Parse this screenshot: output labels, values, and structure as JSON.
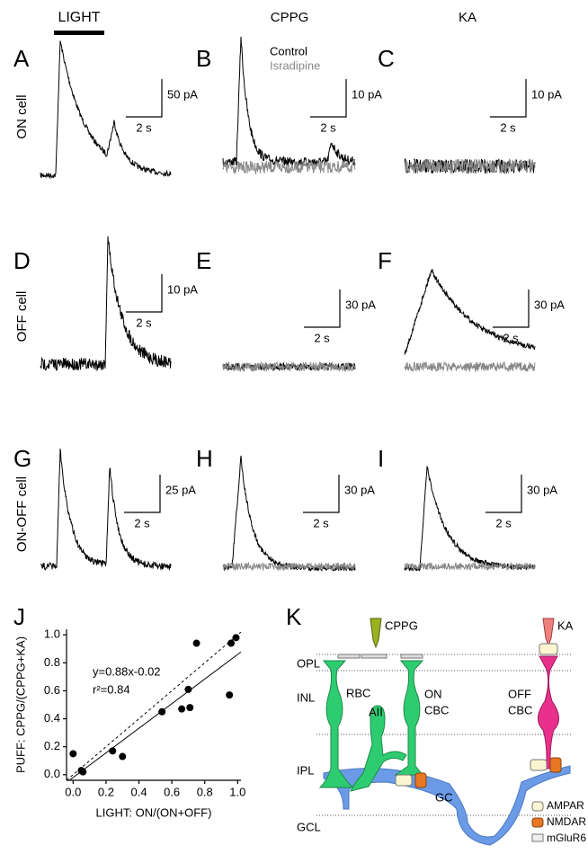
{
  "header": {
    "light": "LIGHT",
    "cppg": "CPPG",
    "ka": "KA"
  },
  "rows": [
    "ON cell",
    "OFF cell",
    "ON-OFF cell"
  ],
  "legend": [
    "Control",
    "Isradipine"
  ],
  "panels": [
    {
      "letter": "A",
      "current": "50 pA",
      "time": "2 s"
    },
    {
      "letter": "B",
      "current": "10 pA",
      "time": "2 s"
    },
    {
      "letter": "C",
      "current": "10 pA",
      "time": "2 s"
    },
    {
      "letter": "D",
      "current": "10 pA",
      "time": "2 s"
    },
    {
      "letter": "E",
      "current": "30 pA",
      "time": "2 s"
    },
    {
      "letter": "F",
      "current": "30 pA",
      "time": "2 s"
    },
    {
      "letter": "G",
      "current": "25 pA",
      "time": "2 s"
    },
    {
      "letter": "H",
      "current": "30 pA",
      "time": "2 s"
    },
    {
      "letter": "I",
      "current": "30 pA",
      "time": "2 s"
    }
  ],
  "chart_data": {
    "type": "scatter",
    "panel": "J",
    "x_label": "LIGHT: ON/(ON+OFF)",
    "y_label": "PUFF: CPPG/(CPPG+KA)",
    "annotations": [
      "y=0.88x-0.02",
      "r²=0.84"
    ],
    "fit": {
      "slope": 0.88,
      "intercept": -0.02
    },
    "color": "#000000",
    "x": [
      0.0,
      0.05,
      0.06,
      0.24,
      0.3,
      0.54,
      0.66,
      0.7,
      0.71,
      0.75,
      0.95,
      0.96,
      0.99
    ],
    "values": [
      0.15,
      0.03,
      0.02,
      0.17,
      0.13,
      0.45,
      0.47,
      0.61,
      0.48,
      0.94,
      0.57,
      0.94,
      0.98
    ],
    "xlim": [
      -0.04,
      1.02
    ],
    "ylim": [
      -0.04,
      1.04
    ],
    "xticks": [
      {
        "value": 0,
        "label": "0.0"
      },
      0.2,
      0.4,
      0.6,
      0.8,
      {
        "value": 1,
        "label": "1.0"
      }
    ],
    "yticks": [
      {
        "value": 0,
        "label": "0.0"
      },
      0.2,
      0.4,
      0.6,
      0.8,
      {
        "value": 1,
        "label": "1.0"
      }
    ]
  },
  "diagram": {
    "letter": "K",
    "layers": [
      "OPL",
      "INL",
      "IPL",
      "GCL"
    ],
    "drugs": [
      "CPPG",
      "KA"
    ],
    "rbc": "RBC",
    "aii": "AII",
    "on_cbc": [
      "ON",
      "CBC"
    ],
    "off_cbc": [
      "OFF",
      "CBC"
    ],
    "gc": "GC",
    "legend": [
      "AMPAR",
      "NMDAR",
      "mGluR6"
    ]
  }
}
